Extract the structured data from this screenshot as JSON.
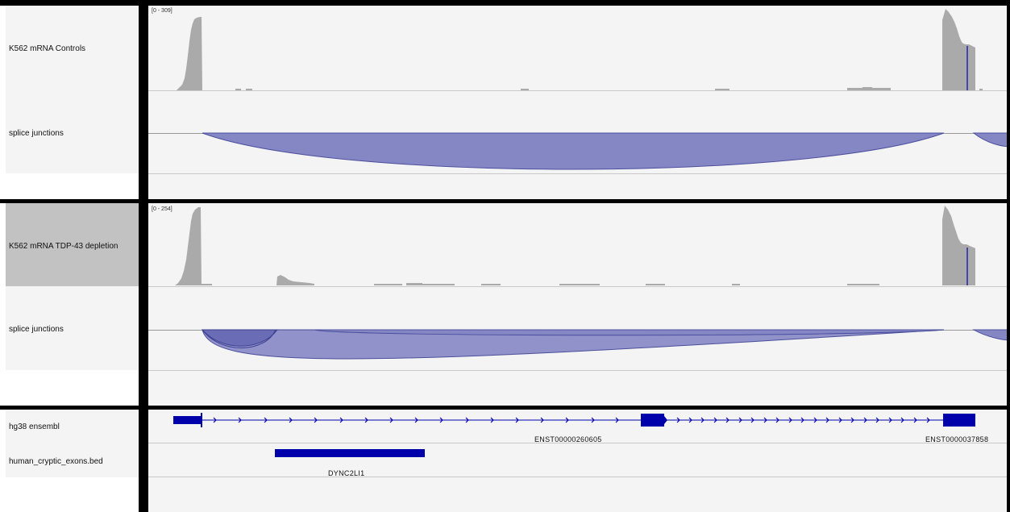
{
  "panels": [
    {
      "id": "controls",
      "coverage_track": {
        "name": "K562 mRNA Controls",
        "range": "[0 - 309]",
        "selected": false
      },
      "junction_track": {
        "name": "splice junctions"
      }
    },
    {
      "id": "tdp43",
      "coverage_track": {
        "name": "K562 mRNA TDP-43 depletion",
        "range": "[0 - 254]",
        "selected": true
      },
      "junction_track": {
        "name": "splice junctions"
      }
    }
  ],
  "feature_panel": {
    "tracks": [
      {
        "name": "hg38 ensembl"
      },
      {
        "name": "human_cryptic_exons.bed"
      }
    ],
    "feature_labels": {
      "transcript_1": "ENST00000260605",
      "transcript_2": "ENST0000037858",
      "cryptic_exon": "DYNC2LI1"
    }
  },
  "colors": {
    "coverage": "#aaaaaa",
    "junction_fill": "#8587c4",
    "junction_stroke": "#4b4f9e",
    "gene": "#0000aa",
    "selected_name_bg": "#c2c2c2",
    "divider": "#000000"
  }
}
